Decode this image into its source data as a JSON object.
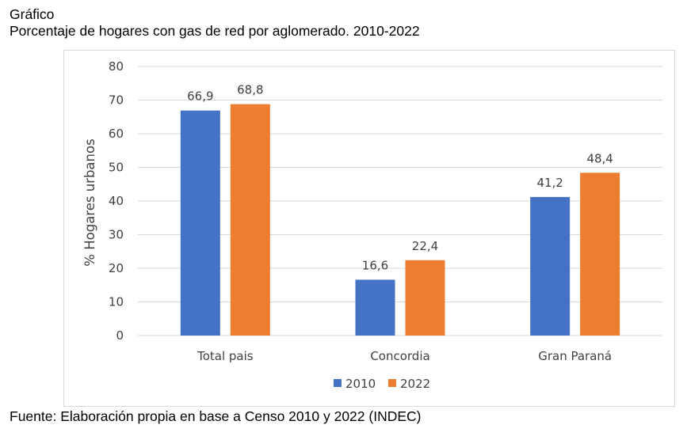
{
  "header": {
    "label": "Gráfico",
    "title": "Porcentaje de hogares con gas de red por aglomerado. 2010-2022"
  },
  "footer": {
    "source": "Fuente: Elaboración propia en base a Censo 2010 y 2022 (INDEC)"
  },
  "colors": {
    "series_2010": "#4472c4",
    "series_2022": "#ed7d31",
    "grid": "#d9d9d9",
    "text": "#404040"
  },
  "chart_data": {
    "type": "bar",
    "title": "Porcentaje de hogares con gas de red por aglomerado. 2010-2022",
    "xlabel": "",
    "ylabel": "% Hogares urbanos",
    "ylim": [
      0,
      80
    ],
    "yticks": [
      "0",
      "10",
      "20",
      "30",
      "40",
      "50",
      "60",
      "70",
      "80"
    ],
    "grid": true,
    "legend": "bottom",
    "categories": [
      "Total pais",
      "Concordia",
      "Gran Paraná"
    ],
    "series": [
      {
        "name": "2010",
        "values": [
          66.9,
          16.6,
          41.2
        ],
        "labels": [
          "66,9",
          "16,6",
          "41,2"
        ],
        "color": "#4472c4"
      },
      {
        "name": "2022",
        "values": [
          68.8,
          22.4,
          48.4
        ],
        "labels": [
          "68,8",
          "22,4",
          "48,4"
        ],
        "color": "#ed7d31"
      }
    ]
  }
}
